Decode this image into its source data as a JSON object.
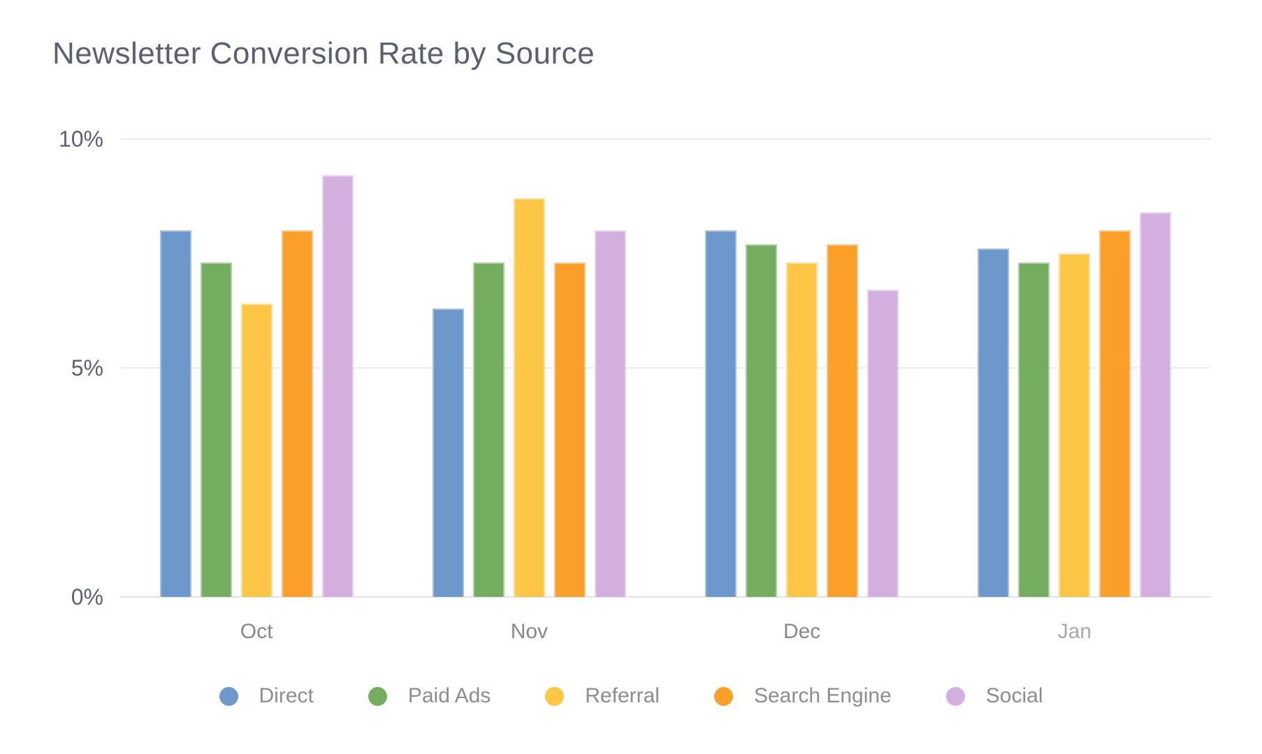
{
  "title": "Newsletter Conversion Rate by Source",
  "chart_data": {
    "type": "bar",
    "title": "Newsletter Conversion Rate by Source",
    "categories": [
      "Oct",
      "Nov",
      "Dec",
      "Jan"
    ],
    "muted_category": "Jan",
    "series": [
      {
        "name": "Direct",
        "color": "#6d98cc",
        "border_color": "#a3bedf",
        "values": [
          8.0,
          6.3,
          8.0,
          7.6
        ]
      },
      {
        "name": "Paid Ads",
        "color": "#74ad5f",
        "border_color": "#aed0a0",
        "values": [
          7.3,
          7.3,
          7.7,
          7.3
        ]
      },
      {
        "name": "Referral",
        "color": "#fdc645",
        "border_color": "#fede9d",
        "values": [
          6.4,
          8.7,
          7.3,
          7.5
        ]
      },
      {
        "name": "Search Engine",
        "color": "#fb9f28",
        "border_color": "#fcc68d",
        "values": [
          8.0,
          7.3,
          7.7,
          8.0
        ]
      },
      {
        "name": "Social",
        "color": "#d3afe0",
        "border_color": "#e6d4f0",
        "values": [
          9.2,
          8.0,
          6.7,
          8.4
        ]
      }
    ],
    "xlabel": "",
    "ylabel": "",
    "ylim": [
      0,
      10
    ],
    "y_ticks": [
      "0%",
      "5%",
      "10%"
    ],
    "grid": "horizontal",
    "gridline_color": "#ececec",
    "legend_position": "bottom"
  }
}
